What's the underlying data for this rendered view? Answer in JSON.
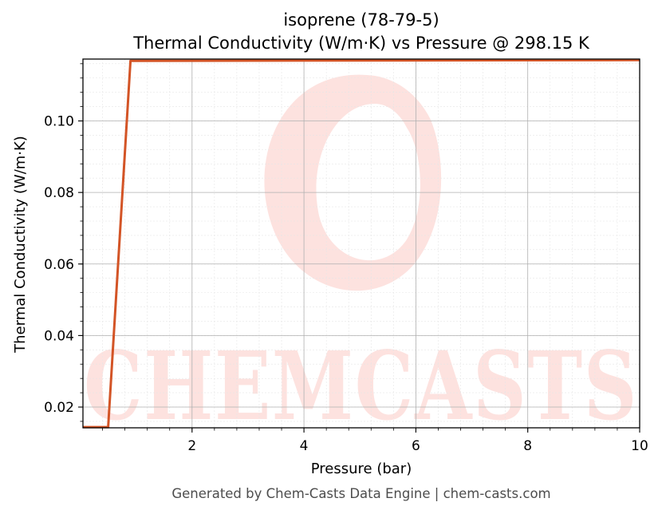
{
  "chart_data": {
    "type": "line",
    "title": "isoprene (78-79-5)",
    "subtitle": "Thermal Conductivity (W/m·K) vs Pressure @ 298.15 K",
    "xlabel": "Pressure (bar)",
    "ylabel": "Thermal Conductivity (W/m·K)",
    "xlim": [
      0.05,
      10
    ],
    "ylim": [
      0.0142,
      0.1173
    ],
    "xticks": [
      2,
      4,
      6,
      8,
      10
    ],
    "yticks": [
      0.02,
      0.04,
      0.06,
      0.08,
      0.1
    ],
    "xtick_labels": [
      "2",
      "4",
      "6",
      "8",
      "10"
    ],
    "ytick_labels": [
      "0.02",
      "0.04",
      "0.06",
      "0.08",
      "0.10"
    ],
    "grid": true,
    "minor_grid": true,
    "series": [
      {
        "color": "#d35426",
        "x": [
          0.05,
          0.5,
          0.9,
          10
        ],
        "y": [
          0.0144,
          0.0144,
          0.1168,
          0.117
        ]
      }
    ]
  },
  "watermark": {
    "text": "CHEMCASTS",
    "color": "#fde2df"
  },
  "footer": "Generated by Chem-Casts Data Engine | chem-casts.com"
}
